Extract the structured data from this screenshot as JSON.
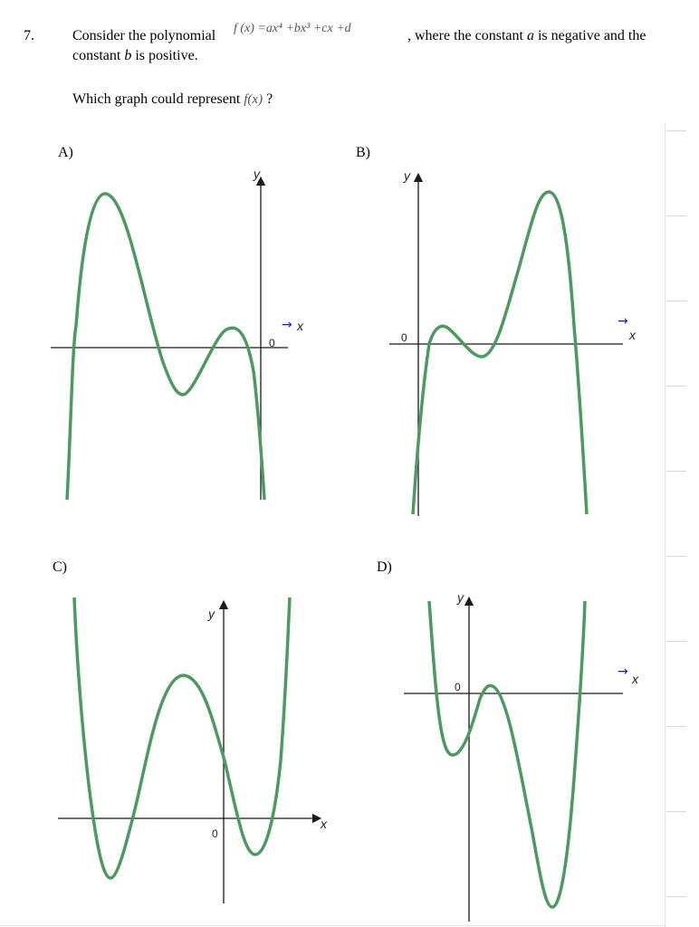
{
  "question": {
    "number": "7.",
    "prefix": "Consider the polynomial",
    "polynomial": "f (x) =ax⁴ +bx³ +cx +d",
    "suffix": ", where the constant",
    "var_a": "a",
    "mid": "is negative and the",
    "line2_start": "constant",
    "var_b": "b",
    "line2_end": "is positive.",
    "prompt": "Which graph could represent",
    "fx": "f(x)",
    "qmark": "?"
  },
  "options": [
    {
      "letter": "A)",
      "y_label": "y",
      "x_label": "x",
      "zero": "0"
    },
    {
      "letter": "B)",
      "y_label": "y",
      "x_label": "x",
      "zero": "0"
    },
    {
      "letter": "C)",
      "y_label": "y",
      "x_label": "x",
      "zero": "0"
    },
    {
      "letter": "D)",
      "y_label": "y",
      "x_label": "x",
      "zero": "0"
    }
  ],
  "colors": {
    "curve": "#4c9a5f",
    "axis": "#1a1a1a",
    "arrow": "#1a1aa0"
  }
}
